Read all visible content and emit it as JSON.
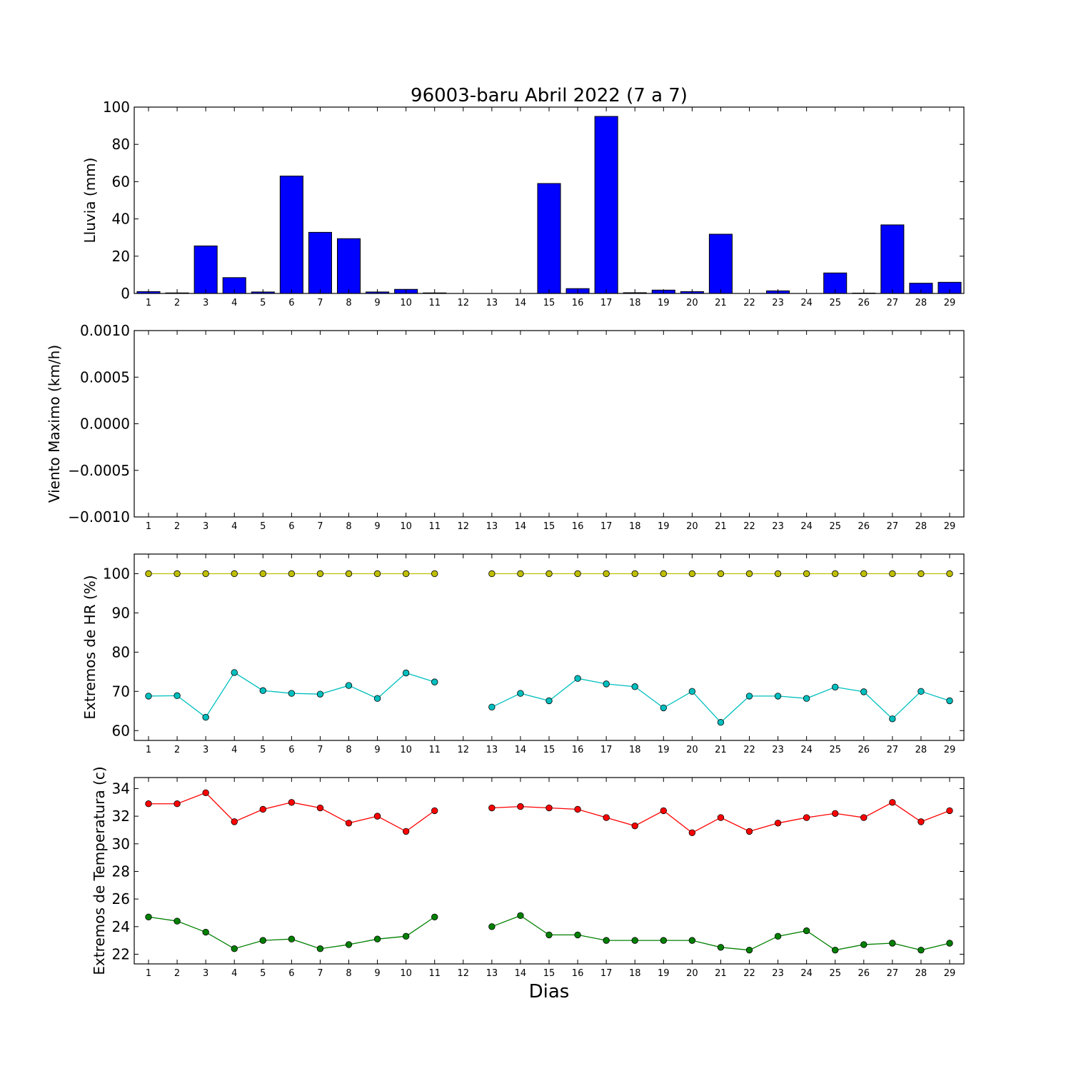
{
  "title": "96003-baru Abril 2022  (7 a 7)",
  "xlabel": "Dias",
  "colors": {
    "rain_bar": "#0000ff",
    "hr_max": "#bfbf00",
    "hr_min": "#00bfbf",
    "temp_max": "#ff0000",
    "temp_min": "#008000"
  },
  "chart_data": [
    {
      "type": "bar",
      "ylabel": "Lluvia (mm)",
      "ylim": [
        0,
        100
      ],
      "yticks": [
        "0",
        "20",
        "40",
        "60",
        "80",
        "100"
      ],
      "categories": [
        "1",
        "2",
        "3",
        "4",
        "5",
        "6",
        "7",
        "8",
        "9",
        "10",
        "11",
        "12",
        "13",
        "14",
        "15",
        "16",
        "17",
        "18",
        "19",
        "20",
        "21",
        "22",
        "23",
        "24",
        "25",
        "26",
        "27",
        "28",
        "29"
      ],
      "values": [
        1.0,
        0.3,
        25.5,
        8.5,
        0.8,
        63.0,
        32.8,
        29.4,
        0.8,
        2.2,
        0.3,
        0,
        0,
        0,
        59.0,
        2.6,
        95.0,
        0.4,
        1.8,
        1.0,
        31.8,
        0,
        1.4,
        0,
        11.0,
        0.2,
        36.8,
        5.5,
        6.0
      ],
      "grid": false
    },
    {
      "type": "line",
      "ylabel": "Viento Maximo (km/h)",
      "ylim": [
        -0.001,
        0.001
      ],
      "yticks": [
        "−0.0010",
        "−0.0005",
        "0.0000",
        "0.0005",
        "0.0010"
      ],
      "categories": [
        "1",
        "2",
        "3",
        "4",
        "5",
        "6",
        "7",
        "8",
        "9",
        "10",
        "11",
        "12",
        "13",
        "14",
        "15",
        "16",
        "17",
        "18",
        "19",
        "20",
        "21",
        "22",
        "23",
        "24",
        "25",
        "26",
        "27",
        "28",
        "29"
      ],
      "series": [],
      "grid": false
    },
    {
      "type": "line",
      "ylabel": "Extremos de HR (%)",
      "ylim": [
        57.5,
        105
      ],
      "yticks": [
        "60",
        "70",
        "80",
        "90",
        "100"
      ],
      "categories": [
        "1",
        "2",
        "3",
        "4",
        "5",
        "6",
        "7",
        "8",
        "9",
        "10",
        "11",
        "12",
        "13",
        "14",
        "15",
        "16",
        "17",
        "18",
        "19",
        "20",
        "21",
        "22",
        "23",
        "24",
        "25",
        "26",
        "27",
        "28",
        "29"
      ],
      "series": [
        {
          "values": [
            100,
            100,
            100,
            100,
            100,
            100,
            100,
            100,
            100,
            100,
            100,
            null,
            100,
            100,
            100,
            100,
            100,
            100,
            100,
            100,
            100,
            100,
            100,
            100,
            100,
            100,
            100,
            100,
            100
          ]
        },
        {
          "values": [
            68.8,
            68.9,
            63.4,
            74.8,
            70.2,
            69.5,
            69.3,
            71.5,
            68.2,
            74.7,
            72.4,
            null,
            66.0,
            69.5,
            67.6,
            73.3,
            71.9,
            71.2,
            65.8,
            70.0,
            62.1,
            68.8,
            68.8,
            68.2,
            71.1,
            69.9,
            63.0,
            70.0,
            67.6
          ]
        }
      ],
      "grid": false
    },
    {
      "type": "line",
      "ylabel": "Extremos de Temperatura (c)",
      "ylim": [
        21.3,
        34.8
      ],
      "yticks": [
        "22",
        "24",
        "26",
        "28",
        "30",
        "32",
        "34"
      ],
      "categories": [
        "1",
        "2",
        "3",
        "4",
        "5",
        "6",
        "7",
        "8",
        "9",
        "10",
        "11",
        "12",
        "13",
        "14",
        "15",
        "16",
        "17",
        "18",
        "19",
        "20",
        "21",
        "22",
        "23",
        "24",
        "25",
        "26",
        "27",
        "28",
        "29"
      ],
      "series": [
        {
          "values": [
            32.9,
            32.9,
            33.7,
            31.6,
            32.5,
            33.0,
            32.6,
            31.5,
            32.0,
            30.9,
            32.4,
            null,
            32.6,
            32.7,
            32.6,
            32.5,
            31.9,
            31.3,
            32.4,
            30.8,
            31.9,
            30.9,
            31.5,
            31.9,
            32.2,
            31.9,
            33.0,
            31.6,
            32.4
          ]
        },
        {
          "values": [
            24.7,
            24.4,
            23.6,
            22.4,
            23.0,
            23.1,
            22.4,
            22.7,
            23.1,
            23.3,
            24.7,
            null,
            24.0,
            24.8,
            23.4,
            23.4,
            23.0,
            23.0,
            23.0,
            23.0,
            22.5,
            22.3,
            23.3,
            23.7,
            22.3,
            22.7,
            22.8,
            22.3,
            22.8
          ]
        }
      ],
      "grid": false
    }
  ]
}
